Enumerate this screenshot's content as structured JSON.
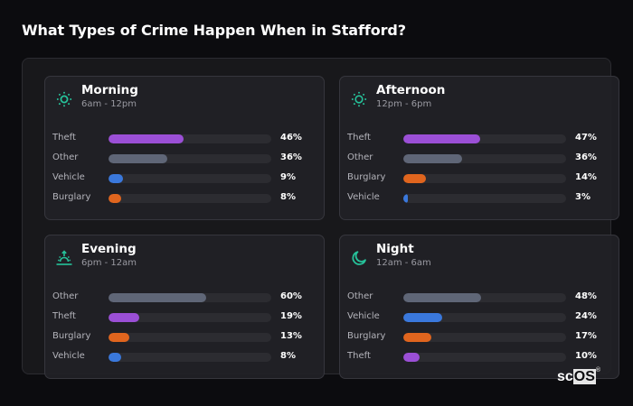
{
  "page": {
    "title": "What Types of Crime Happen When in Stafford?"
  },
  "colors": {
    "Theft": "#9b4fd6",
    "Other": "#5f6677",
    "Vehicle": "#3a78dc",
    "Burglary": "#e0651e",
    "icon": "#26c29a"
  },
  "cards": [
    {
      "name": "Morning",
      "range": "6am - 12pm",
      "icon": "sun-icon",
      "rows": [
        {
          "label": "Theft",
          "value": 46,
          "pct": "46%"
        },
        {
          "label": "Other",
          "value": 36,
          "pct": "36%"
        },
        {
          "label": "Vehicle",
          "value": 9,
          "pct": "9%"
        },
        {
          "label": "Burglary",
          "value": 8,
          "pct": "8%"
        }
      ]
    },
    {
      "name": "Afternoon",
      "range": "12pm - 6pm",
      "icon": "sun-icon",
      "rows": [
        {
          "label": "Theft",
          "value": 47,
          "pct": "47%"
        },
        {
          "label": "Other",
          "value": 36,
          "pct": "36%"
        },
        {
          "label": "Burglary",
          "value": 14,
          "pct": "14%"
        },
        {
          "label": "Vehicle",
          "value": 3,
          "pct": "3%"
        }
      ]
    },
    {
      "name": "Evening",
      "range": "6pm - 12am",
      "icon": "sunset-icon",
      "rows": [
        {
          "label": "Other",
          "value": 60,
          "pct": "60%"
        },
        {
          "label": "Theft",
          "value": 19,
          "pct": "19%"
        },
        {
          "label": "Burglary",
          "value": 13,
          "pct": "13%"
        },
        {
          "label": "Vehicle",
          "value": 8,
          "pct": "8%"
        }
      ]
    },
    {
      "name": "Night",
      "range": "12am - 6am",
      "icon": "moon-icon",
      "rows": [
        {
          "label": "Other",
          "value": 48,
          "pct": "48%"
        },
        {
          "label": "Vehicle",
          "value": 24,
          "pct": "24%"
        },
        {
          "label": "Burglary",
          "value": 17,
          "pct": "17%"
        },
        {
          "label": "Theft",
          "value": 10,
          "pct": "10%"
        }
      ]
    }
  ],
  "logo": {
    "sc": "sc",
    "os": "OS",
    "mark": "®"
  }
}
